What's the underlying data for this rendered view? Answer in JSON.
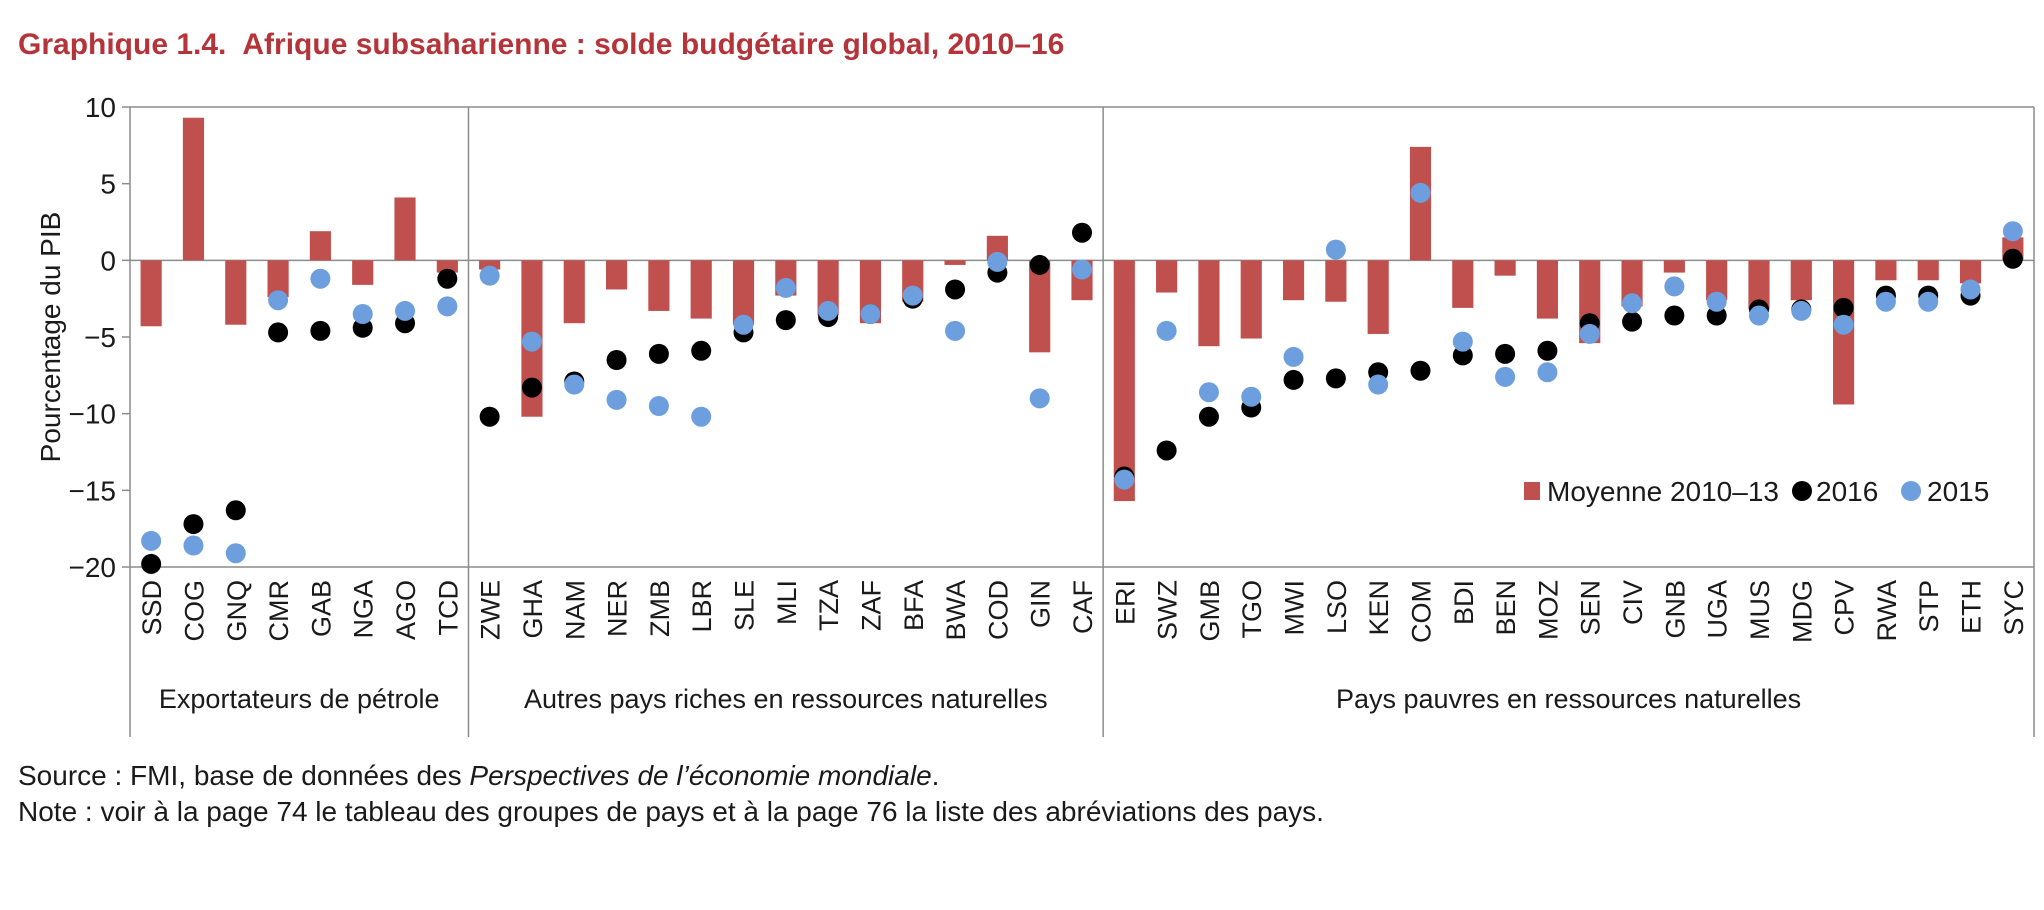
{
  "title": {
    "number": "Graphique 1.4.",
    "text": "Afrique subsaharienne : solde budgétaire global, 2010–16"
  },
  "chart_data": {
    "type": "bar",
    "ylabel": "Pourcentage du PIB",
    "ylim": [
      -20,
      10
    ],
    "yticks": [
      10,
      5,
      0,
      -5,
      -10,
      -15,
      -20
    ],
    "ytick_labels": [
      "10",
      "5",
      "0",
      "−5",
      "−10",
      "−15",
      "−20"
    ],
    "grid": false,
    "legend_position": "inside-bottom-right",
    "categories": [
      "SSD",
      "COG",
      "GNQ",
      "CMR",
      "GAB",
      "NGA",
      "AGO",
      "TCD",
      "ZWE",
      "GHA",
      "NAM",
      "NER",
      "ZMB",
      "LBR",
      "SLE",
      "MLI",
      "TZA",
      "ZAF",
      "BFA",
      "BWA",
      "COD",
      "GIN",
      "CAF",
      "ERI",
      "SWZ",
      "GMB",
      "TGO",
      "MWI",
      "LSO",
      "KEN",
      "COM",
      "BDI",
      "BEN",
      "MOZ",
      "SEN",
      "CIV",
      "GNB",
      "UGA",
      "MUS",
      "MDG",
      "CPV",
      "RWA",
      "STP",
      "ETH",
      "SYC"
    ],
    "groups": [
      {
        "label": "Exportateurs de pétrole",
        "count": 8
      },
      {
        "label": "Autres pays riches en ressources naturelles",
        "count": 15
      },
      {
        "label": "Pays pauvres en ressources naturelles",
        "count": 22
      }
    ],
    "series": [
      {
        "name": "Moyenne 2010–13",
        "kind": "bar",
        "color": "#c0504d",
        "values": [
          -4.3,
          9.3,
          -4.2,
          -2.4,
          1.9,
          -1.6,
          4.1,
          -0.8,
          -0.6,
          -10.2,
          -4.1,
          -1.9,
          -3.3,
          -3.8,
          -4.2,
          -2.3,
          -3.6,
          -4.1,
          -2.7,
          -0.3,
          1.6,
          -6.0,
          -2.6,
          -15.7,
          -2.1,
          -5.6,
          -5.1,
          -2.6,
          -2.7,
          -4.8,
          7.4,
          -3.1,
          -1.0,
          -3.8,
          -5.4,
          -3.0,
          -0.8,
          -2.6,
          -3.2,
          -2.6,
          -9.4,
          -1.3,
          -1.3,
          -1.5,
          1.5
        ]
      },
      {
        "name": "2016",
        "kind": "dot",
        "color": "#000000",
        "values": [
          -19.8,
          -17.2,
          -16.3,
          -4.7,
          -4.6,
          -4.4,
          -4.1,
          -1.2,
          -10.2,
          -8.3,
          -7.9,
          -6.5,
          -6.1,
          -5.9,
          -4.7,
          -3.9,
          -3.7,
          -3.5,
          -2.5,
          -1.9,
          -0.8,
          -0.3,
          1.8,
          -14.1,
          -12.4,
          -10.2,
          -9.6,
          -7.8,
          -7.7,
          -7.3,
          -7.2,
          -6.2,
          -6.1,
          -5.9,
          -4.1,
          -4.0,
          -3.6,
          -3.6,
          -3.2,
          -3.2,
          -3.1,
          -2.3,
          -2.3,
          -2.3,
          0.1
        ]
      },
      {
        "name": "2015",
        "kind": "dot",
        "color": "#6d9ede",
        "values": [
          -18.3,
          -18.6,
          -19.1,
          -2.6,
          -1.2,
          -3.5,
          -3.3,
          -3.0,
          -1.0,
          -5.3,
          -8.1,
          -9.1,
          -9.5,
          -10.2,
          -4.2,
          -1.8,
          -3.3,
          -3.5,
          -2.3,
          -4.6,
          -0.1,
          -9.0,
          -0.6,
          -14.3,
          -4.6,
          -8.6,
          -8.9,
          -6.3,
          0.7,
          -8.1,
          4.4,
          -5.3,
          -7.6,
          -7.3,
          -4.8,
          -2.8,
          -1.7,
          -2.7,
          -3.6,
          -3.3,
          -4.2,
          -2.7,
          -2.7,
          -1.9,
          1.9
        ]
      }
    ]
  },
  "footer": {
    "source_prefix": "Source : FMI, base de données des ",
    "source_italic": "Perspectives de l’économie mondiale",
    "source_suffix": ".",
    "note": "Note : voir à la page 74 le tableau des groupes de pays et à la page 76 la liste des abréviations des pays."
  }
}
